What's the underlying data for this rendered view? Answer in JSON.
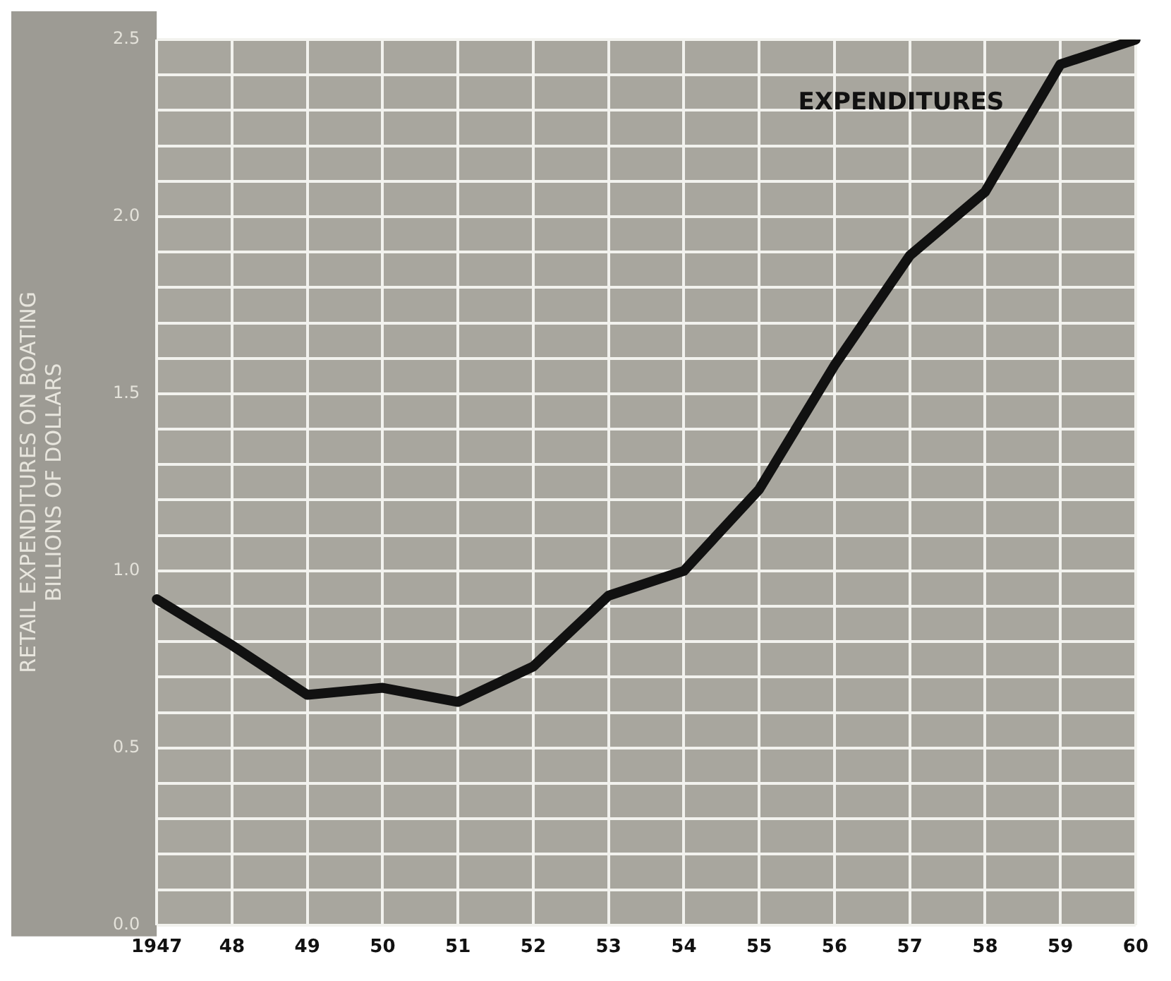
{
  "chart_data": {
    "type": "line",
    "ylabel": "RETAIL EXPENDITURES ON BOATING\nBILLIONS OF DOLLARS",
    "categories": [
      "1947",
      "48",
      "49",
      "50",
      "51",
      "52",
      "53",
      "54",
      "55",
      "56",
      "57",
      "58",
      "59",
      "60"
    ],
    "series": [
      {
        "name": "EXPENDITURES",
        "color": "#111111",
        "values": [
          0.92,
          0.79,
          0.65,
          0.67,
          0.63,
          0.73,
          0.93,
          1.0,
          1.23,
          1.58,
          1.89,
          2.07,
          2.43,
          2.5
        ]
      }
    ],
    "ylim": [
      0,
      2.5
    ],
    "yticks": [
      {
        "value": 0,
        "label": "0.0"
      },
      {
        "value": 0.1,
        "label": null
      },
      {
        "value": 0.2,
        "label": null
      },
      {
        "value": 0.3,
        "label": null
      },
      {
        "value": 0.4,
        "label": null
      },
      {
        "value": 0.5,
        "label": "0.5"
      },
      {
        "value": 0.6,
        "label": null
      },
      {
        "value": 0.7,
        "label": null
      },
      {
        "value": 0.8,
        "label": null
      },
      {
        "value": 0.9,
        "label": null
      },
      {
        "value": 1.0,
        "label": "1.0"
      },
      {
        "value": 1.1,
        "label": null
      },
      {
        "value": 1.2,
        "label": null
      },
      {
        "value": 1.3,
        "label": null
      },
      {
        "value": 1.4,
        "label": null
      },
      {
        "value": 1.5,
        "label": "1.5"
      },
      {
        "value": 1.6,
        "label": null
      },
      {
        "value": 1.7,
        "label": null
      },
      {
        "value": 1.8,
        "label": null
      },
      {
        "value": 1.9,
        "label": null
      },
      {
        "value": 2.0,
        "label": "2.0"
      },
      {
        "value": 2.1,
        "label": null
      },
      {
        "value": 2.2,
        "label": null
      },
      {
        "value": 2.3,
        "label": null
      },
      {
        "value": 2.4,
        "label": null
      },
      {
        "value": 2.5,
        "label": "2.5"
      }
    ],
    "grid": true,
    "legend": false,
    "marker": "none",
    "line_style": "solid"
  }
}
